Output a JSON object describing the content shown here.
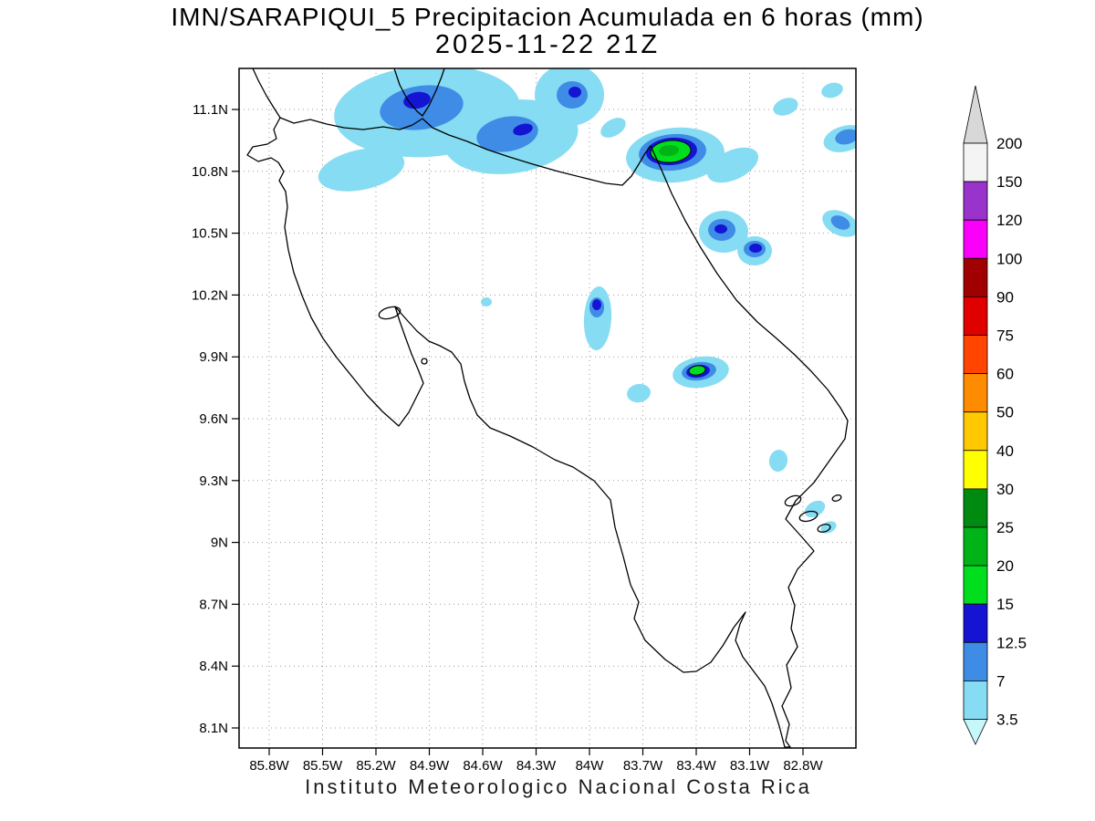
{
  "title": {
    "line1": "IMN/SARAPIQUI_5 Precipitacion Acumulada en 6 horas (mm)",
    "line2": "2025-11-22 21Z"
  },
  "footer": "Instituto Meteorologico Nacional Costa Rica",
  "axes": {
    "lat_ticks": [
      "11.1N",
      "10.8N",
      "10.5N",
      "10.2N",
      "9.9N",
      "9.6N",
      "9.3N",
      "9N",
      "8.7N",
      "8.4N",
      "8.1N"
    ],
    "lon_ticks": [
      "85.8W",
      "85.5W",
      "85.2W",
      "84.9W",
      "84.6W",
      "84.3W",
      "84W",
      "83.7W",
      "83.4W",
      "83.1W",
      "82.8W"
    ]
  },
  "colorbar": {
    "unit": "mm",
    "tick_labels": [
      "200",
      "150",
      "120",
      "100",
      "90",
      "75",
      "60",
      "50",
      "40",
      "30",
      "25",
      "20",
      "15",
      "12.5",
      "7",
      "3.5"
    ],
    "band_colors": [
      "#f4f4f4",
      "#9a33cc",
      "#fa00fa",
      "#a00000",
      "#e00000",
      "#ff4500",
      "#ff8c00",
      "#ffc800",
      "#ffff00",
      "#008a10",
      "#00b418",
      "#00de1e",
      "#1414d2",
      "#3f8ce6",
      "#86dcf2"
    ],
    "arrow_up_color": "#d8d8d8",
    "arrow_down_color": "#c6f7fa"
  },
  "precipitation": {
    "patch_format": "[cx,cy,rx,ry,rotation_deg,level,(1=contour outline)]",
    "levels": [
      {
        "id": 1,
        "range_mm": "3.5-7",
        "color": "#86dcf2"
      },
      {
        "id": 2,
        "range_mm": "7-12.5",
        "color": "#3f8ce6"
      },
      {
        "id": 3,
        "range_mm": "12.5-15",
        "color": "#1414d2"
      },
      {
        "id": 4,
        "range_mm": "15-20",
        "color": "#00de1e"
      },
      {
        "id": 5,
        "range_mm": "20-25",
        "color": "#00b418"
      }
    ],
    "patches": [
      [
        468,
        122,
        102,
        50,
        -4,
        1
      ],
      [
        560,
        150,
        74,
        40,
        -8,
        1
      ],
      [
        396,
        186,
        48,
        22,
        -12,
        1
      ],
      [
        624,
        104,
        38,
        34,
        0,
        1
      ],
      [
        672,
        140,
        15,
        9,
        -30,
        1
      ],
      [
        740,
        170,
        54,
        30,
        -5,
        1
      ],
      [
        803,
        181,
        30,
        16,
        -25,
        1
      ],
      [
        861,
        117,
        14,
        9,
        -20,
        1
      ],
      [
        912,
        99,
        12,
        8,
        -15,
        1
      ],
      [
        926,
        152,
        24,
        14,
        -15,
        1
      ],
      [
        793,
        254,
        27,
        23,
        0,
        1
      ],
      [
        827,
        275,
        19,
        16,
        0,
        1
      ],
      [
        921,
        245,
        21,
        13,
        25,
        1
      ],
      [
        655,
        349,
        15,
        35,
        3,
        1
      ],
      [
        533,
        331,
        6,
        5,
        0,
        1
      ],
      [
        700,
        431,
        13,
        10,
        -10,
        1
      ],
      [
        768,
        408,
        31,
        17,
        -8,
        1
      ],
      [
        853,
        505,
        10,
        12,
        10,
        1
      ],
      [
        893,
        558,
        12,
        8,
        -30,
        1
      ],
      [
        908,
        578,
        9,
        6,
        -25,
        1
      ],
      [
        462,
        118,
        46,
        24,
        -8,
        2
      ],
      [
        556,
        147,
        34,
        19,
        -10,
        2
      ],
      [
        627,
        104,
        17,
        15,
        0,
        2
      ],
      [
        737,
        167,
        37,
        20,
        -5,
        2
      ],
      [
        928,
        150,
        13,
        8,
        -15,
        2
      ],
      [
        791,
        252,
        15,
        12,
        0,
        2
      ],
      [
        827,
        273,
        12,
        9,
        0,
        2
      ],
      [
        654,
        337,
        8,
        11,
        0,
        2
      ],
      [
        766,
        407,
        19,
        10,
        -8,
        2
      ],
      [
        921,
        244,
        11,
        7,
        25,
        2
      ],
      [
        457,
        110,
        15,
        9,
        -10,
        3
      ],
      [
        573,
        142,
        11,
        6,
        -15,
        3
      ],
      [
        630,
        101,
        7,
        6,
        0,
        3
      ],
      [
        736,
        166,
        28,
        15,
        -5,
        3
      ],
      [
        790,
        251,
        7,
        5,
        0,
        3
      ],
      [
        828,
        272,
        7,
        5,
        0,
        3
      ],
      [
        765,
        407,
        13,
        7,
        -8,
        3
      ],
      [
        654,
        334,
        5,
        6,
        0,
        3
      ],
      [
        735,
        166,
        22,
        12,
        -5,
        4,
        1
      ],
      [
        764,
        406,
        9,
        5,
        -8,
        4,
        1
      ],
      [
        733,
        165,
        11,
        6,
        -5,
        5
      ]
    ]
  }
}
